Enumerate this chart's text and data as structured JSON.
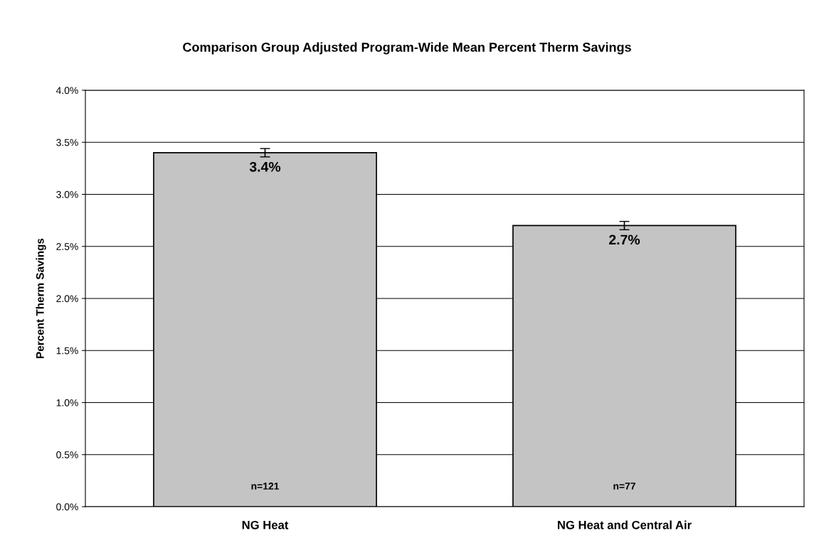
{
  "chart_data": {
    "type": "bar",
    "title": "Comparison Group Adjusted Program-Wide Mean Percent Therm Savings",
    "ylabel": "Percent Therm Savings",
    "categories": [
      "NG Heat",
      "NG Heat and Central Air"
    ],
    "values": [
      3.4,
      2.7
    ],
    "errors": [
      0.04,
      0.04
    ],
    "color": "#c4c4c4",
    "value_labels": [
      "3.4%",
      "2.7%"
    ],
    "annotations": [
      "n=121",
      "n=77"
    ],
    "ylim": [
      0,
      4.0
    ],
    "yticks": [
      {
        "value": 0,
        "label": "0.0%"
      },
      {
        "value": 0.5,
        "label": "0.5%"
      },
      {
        "value": 1.0,
        "label": "1.0%"
      },
      {
        "value": 1.5,
        "label": "1.5%"
      },
      {
        "value": 2.0,
        "label": "2.0%"
      },
      {
        "value": 2.5,
        "label": "2.5%"
      },
      {
        "value": 3.0,
        "label": "3.0%"
      },
      {
        "value": 3.5,
        "label": "3.5%"
      },
      {
        "value": 4.0,
        "label": "4.0%"
      }
    ],
    "grid": "y",
    "legend": false
  }
}
